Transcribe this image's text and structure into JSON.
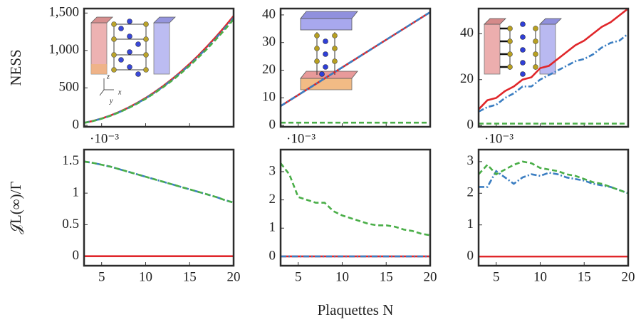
{
  "chart_data": [
    {
      "type": "line",
      "ylabel": "NESS",
      "inset_axis_labels": [
        "z",
        "x",
        "y"
      ],
      "x": [
        3,
        4,
        5,
        6,
        7,
        8,
        9,
        10,
        11,
        12,
        13,
        14,
        15,
        16,
        17,
        18,
        19,
        20
      ],
      "xlim": [
        3,
        20
      ],
      "xticks": [
        5,
        10,
        15,
        20
      ],
      "show_xtick_labels": false,
      "ylim": [
        -20,
        1560
      ],
      "yticks": [
        0,
        500,
        {
          "value": 1000,
          "label": "1,000"
        },
        {
          "value": 1500,
          "label": "1,500"
        }
      ],
      "series": [
        {
          "color": "#e0262a",
          "dash": "solid",
          "values": [
            33,
            58,
            91,
            131,
            179,
            234,
            296,
            365,
            442,
            526,
            617,
            715,
            821,
            934,
            1055,
            1183,
            1318,
            1460
          ]
        },
        {
          "color": "#3b7ec2",
          "dash": "dashdot",
          "values": [
            33,
            57,
            90,
            129,
            176,
            230,
            292,
            360,
            435,
            518,
            608,
            704,
            809,
            920,
            1039,
            1165,
            1298,
            1438
          ]
        },
        {
          "color": "#4aae48",
          "dash": "dashed",
          "values": [
            32,
            56,
            88,
            127,
            174,
            227,
            287,
            354,
            429,
            510,
            598,
            694,
            796,
            906,
            1023,
            1148,
            1278,
            1416
          ]
        }
      ]
    },
    {
      "type": "line",
      "x": [
        3,
        4,
        5,
        6,
        7,
        8,
        9,
        10,
        11,
        12,
        13,
        14,
        15,
        16,
        17,
        18,
        19,
        20
      ],
      "xlim": [
        3,
        20
      ],
      "xticks": [
        5,
        10,
        15,
        20
      ],
      "show_xtick_labels": false,
      "ylim": [
        -0.5,
        42.3
      ],
      "yticks": [
        0,
        10,
        20,
        30,
        40
      ],
      "series": [
        {
          "color": "#e0262a",
          "dash": "solid",
          "values": [
            7,
            9,
            11,
            13,
            15,
            17,
            19,
            21,
            23,
            25,
            27,
            29,
            31,
            33,
            35,
            37,
            39,
            41
          ]
        },
        {
          "color": "#3b7ec2",
          "dash": "dashdot",
          "values": [
            7,
            9,
            11,
            13,
            15,
            17,
            19,
            21,
            23,
            25,
            27,
            29,
            31,
            33,
            35,
            37,
            39,
            41
          ]
        },
        {
          "color": "#4aae48",
          "dash": "dashed",
          "values": [
            1,
            1,
            1,
            1,
            1,
            1,
            1,
            1,
            1,
            1,
            1,
            1,
            1,
            1,
            1,
            1,
            1,
            1
          ]
        }
      ]
    },
    {
      "type": "line",
      "x": [
        3,
        4,
        5,
        6,
        7,
        8,
        9,
        10,
        11,
        12,
        13,
        14,
        15,
        16,
        17,
        18,
        19,
        20
      ],
      "xlim": [
        3,
        20
      ],
      "xticks": [
        5,
        10,
        15,
        20
      ],
      "show_xtick_labels": false,
      "ylim": [
        -0.6,
        51
      ],
      "yticks": [
        0,
        20,
        40
      ],
      "series": [
        {
          "color": "#e0262a",
          "dash": "solid",
          "values": [
            7,
            11,
            12,
            15,
            17,
            20,
            21,
            25,
            26,
            29,
            32,
            35,
            37,
            40,
            43,
            45,
            48,
            51
          ]
        },
        {
          "color": "#3b7ec2",
          "dash": "dashdot",
          "values": [
            6,
            8,
            9,
            12,
            14,
            17,
            17,
            20,
            22,
            24,
            26,
            28,
            29,
            31,
            34,
            36,
            37,
            40
          ]
        },
        {
          "color": "#4aae48",
          "dash": "dashed",
          "values": [
            0.8,
            0.8,
            0.8,
            0.8,
            0.8,
            0.8,
            0.8,
            0.8,
            0.8,
            0.8,
            0.8,
            0.8,
            0.8,
            0.8,
            0.8,
            0.8,
            0.8,
            0.8
          ]
        }
      ]
    },
    {
      "type": "line",
      "ylabel": "𝒥L(∞)/Γ",
      "scale_label": "·10⁻³",
      "x": [
        3,
        4,
        5,
        6,
        7,
        8,
        9,
        10,
        11,
        12,
        13,
        14,
        15,
        16,
        17,
        18,
        19,
        20
      ],
      "xlim": [
        3,
        20
      ],
      "xticks": [
        5,
        10,
        15,
        20
      ],
      "show_xtick_labels": true,
      "ylim": [
        -0.15,
        1.69
      ],
      "yticks": [
        0,
        0.5,
        1,
        1.5
      ],
      "series": [
        {
          "color": "#e0262a",
          "dash": "solid",
          "values": [
            0,
            0,
            0,
            0,
            0,
            0,
            0,
            0,
            0,
            0,
            0,
            0,
            0,
            0,
            0,
            0,
            0,
            0
          ]
        },
        {
          "color": "#3b7ec2",
          "dash": "dashdot",
          "values": [
            1.5,
            1.48,
            1.45,
            1.42,
            1.38,
            1.34,
            1.3,
            1.26,
            1.22,
            1.18,
            1.14,
            1.1,
            1.06,
            1.02,
            0.98,
            0.94,
            0.89,
            0.85
          ]
        },
        {
          "color": "#4aae48",
          "dash": "dashed",
          "values": [
            1.5,
            1.48,
            1.45,
            1.42,
            1.38,
            1.34,
            1.3,
            1.26,
            1.22,
            1.18,
            1.14,
            1.1,
            1.06,
            1.02,
            0.98,
            0.94,
            0.89,
            0.85
          ]
        }
      ]
    },
    {
      "type": "line",
      "scale_label": "·10⁻³",
      "xlabel": "Plaquettes N",
      "x": [
        3,
        4,
        5,
        6,
        7,
        8,
        9,
        10,
        11,
        12,
        13,
        14,
        15,
        16,
        17,
        18,
        19,
        20
      ],
      "xlim": [
        3,
        20
      ],
      "xticks": [
        5,
        10,
        15,
        20
      ],
      "show_xtick_labels": true,
      "ylim": [
        -0.33,
        3.78
      ],
      "yticks": [
        0,
        1,
        2,
        3
      ],
      "series": [
        {
          "color": "#e0262a",
          "dash": "solid",
          "values": [
            0,
            0,
            0,
            0,
            0,
            0,
            0,
            0,
            0,
            0,
            0,
            0,
            0,
            0,
            0,
            0,
            0,
            0
          ]
        },
        {
          "color": "#3b7ec2",
          "dash": "dashdot",
          "values": [
            0,
            0,
            0,
            0,
            0,
            0,
            0,
            0,
            0,
            0,
            0,
            0,
            0,
            0,
            0,
            0,
            0,
            0
          ]
        },
        {
          "color": "#4aae48",
          "dash": "dashed",
          "values": [
            3.3,
            2.9,
            2.1,
            2.0,
            1.9,
            1.9,
            1.6,
            1.45,
            1.35,
            1.25,
            1.15,
            1.1,
            1.1,
            1.05,
            0.95,
            0.9,
            0.8,
            0.75
          ]
        }
      ]
    },
    {
      "type": "line",
      "scale_label": "·10⁻³",
      "x": [
        3,
        4,
        5,
        6,
        7,
        8,
        9,
        10,
        11,
        12,
        13,
        14,
        15,
        16,
        17,
        18,
        19,
        20
      ],
      "xlim": [
        3,
        20
      ],
      "xticks": [
        5,
        10,
        15,
        20
      ],
      "show_xtick_labels": true,
      "ylim": [
        -0.29,
        3.38
      ],
      "yticks": [
        0,
        1,
        2,
        3
      ],
      "series": [
        {
          "color": "#e0262a",
          "dash": "solid",
          "values": [
            0,
            0,
            0,
            0,
            0,
            0,
            0,
            0,
            0,
            0,
            0,
            0,
            0,
            0,
            0,
            0,
            0,
            0
          ]
        },
        {
          "color": "#3b7ec2",
          "dash": "dashdot",
          "values": [
            2.2,
            2.2,
            2.7,
            2.5,
            2.3,
            2.5,
            2.6,
            2.55,
            2.65,
            2.6,
            2.5,
            2.45,
            2.4,
            2.3,
            2.25,
            2.2,
            2.1,
            2.0
          ]
        },
        {
          "color": "#4aae48",
          "dash": "dashed",
          "values": [
            2.6,
            2.9,
            2.6,
            2.75,
            2.9,
            3.0,
            2.95,
            2.8,
            2.75,
            2.7,
            2.6,
            2.55,
            2.45,
            2.35,
            2.3,
            2.2,
            2.1,
            2.0
          ]
        }
      ]
    }
  ]
}
